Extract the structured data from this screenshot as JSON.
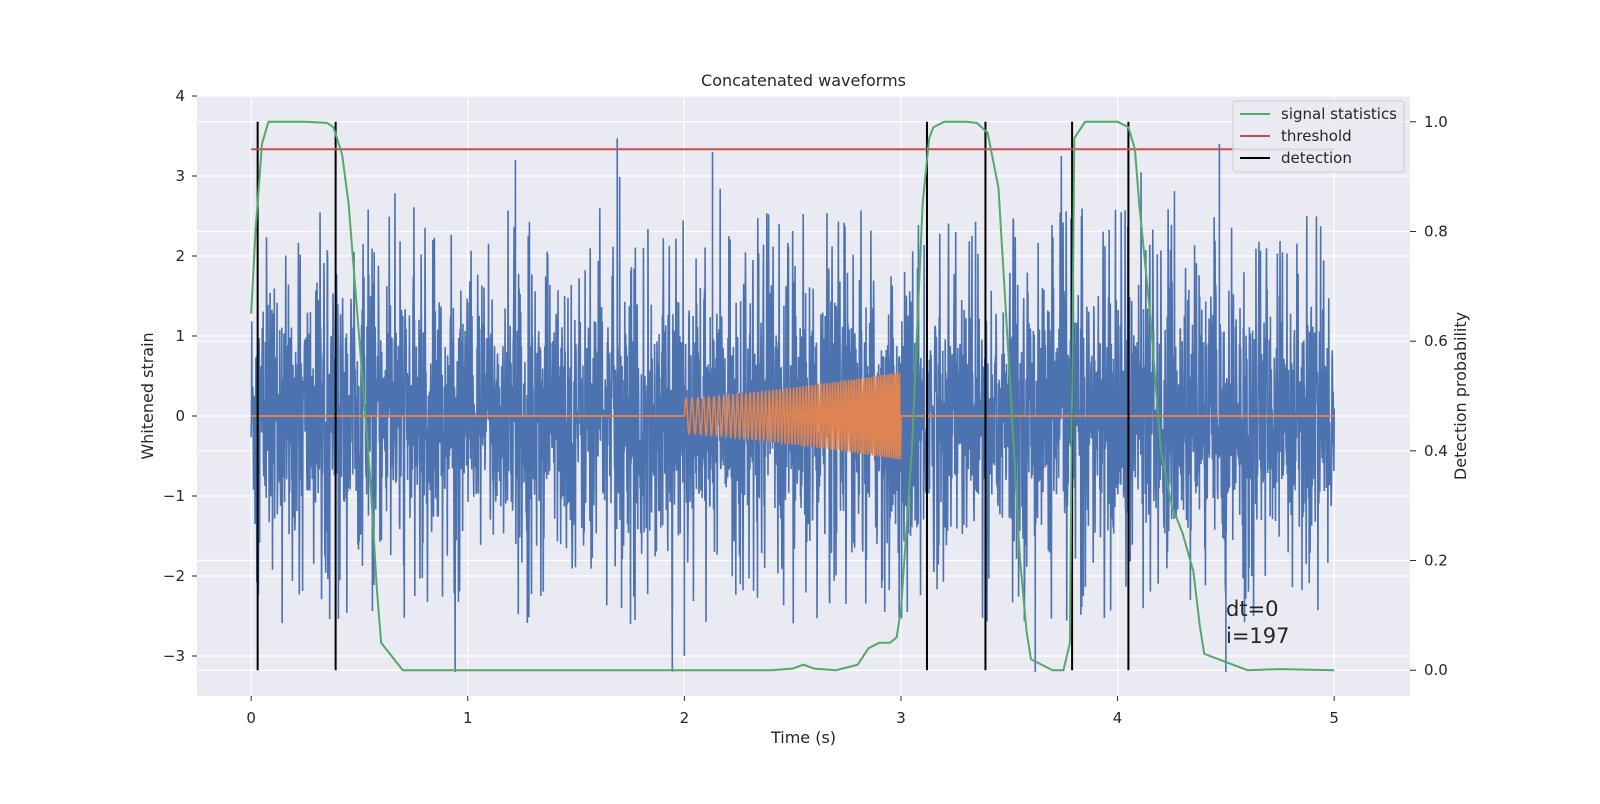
{
  "chart_data": {
    "type": "line",
    "title": "Concatenated waveforms",
    "xlabel": "Time (s)",
    "ylabel": "Whitened strain",
    "y2label": "Detection probability",
    "xlim": [
      -0.25,
      5.35
    ],
    "ylim": [
      -3.5,
      4.0
    ],
    "y2lim": [
      -0.047,
      1.047
    ],
    "xticks": [
      0,
      1,
      2,
      3,
      4,
      5
    ],
    "xtick_labels": [
      "0",
      "1",
      "2",
      "3",
      "4",
      "5"
    ],
    "yticks": [
      -3,
      -2,
      -1,
      0,
      1,
      2,
      3,
      4
    ],
    "ytick_labels": [
      "−3",
      "−2",
      "−1",
      "0",
      "1",
      "2",
      "3",
      "4"
    ],
    "y2ticks": [
      0.0,
      0.2,
      0.4,
      0.6,
      0.8,
      1.0
    ],
    "y2tick_labels": [
      "0.0",
      "0.2",
      "0.4",
      "0.6",
      "0.8",
      "1.0"
    ],
    "grid": true,
    "background": "#eaeaf2",
    "legend_position": "top-right",
    "series": [
      {
        "name": "",
        "role": "whitened strain noise",
        "color": "#4c72b0",
        "x_range": [
          0,
          5
        ],
        "typical_peak": 2.2,
        "min_value": -3.2,
        "max_value": 3.5
      },
      {
        "name": "",
        "role": "injected waveform",
        "color": "#dd8452",
        "x": [
          0,
          2,
          2,
          2.5,
          3,
          3,
          5
        ],
        "y": [
          0,
          0,
          0.25,
          0.35,
          0.55,
          0,
          0
        ],
        "chirp_start": 2.0,
        "chirp_end": 3.0
      },
      {
        "name": "signal statistics",
        "axis": "right",
        "color": "#55a868",
        "x": [
          0.0,
          0.02,
          0.05,
          0.08,
          0.1,
          0.15,
          0.25,
          0.35,
          0.38,
          0.42,
          0.45,
          0.5,
          0.55,
          0.58,
          0.6,
          0.7,
          1.0,
          1.5,
          2.0,
          2.4,
          2.5,
          2.55,
          2.6,
          2.7,
          2.8,
          2.85,
          2.9,
          2.95,
          2.98,
          3.0,
          3.05,
          3.1,
          3.13,
          3.15,
          3.2,
          3.3,
          3.35,
          3.4,
          3.45,
          3.5,
          3.55,
          3.58,
          3.6,
          3.7,
          3.75,
          3.78,
          3.8,
          3.85,
          4.0,
          4.05,
          4.08,
          4.1,
          4.15,
          4.2,
          4.25,
          4.3,
          4.35,
          4.38,
          4.4,
          4.6,
          4.75,
          5.0
        ],
        "y": [
          0.65,
          0.8,
          0.96,
          1.0,
          1.0,
          1.0,
          1.0,
          0.998,
          0.99,
          0.94,
          0.85,
          0.6,
          0.35,
          0.15,
          0.05,
          0.0,
          0.0,
          0.0,
          0.0,
          0.0,
          0.003,
          0.01,
          0.003,
          0.0,
          0.01,
          0.04,
          0.05,
          0.05,
          0.06,
          0.11,
          0.4,
          0.85,
          0.97,
          0.99,
          1.0,
          1.0,
          0.998,
          0.98,
          0.88,
          0.55,
          0.2,
          0.07,
          0.02,
          0.0,
          0.0,
          0.05,
          0.97,
          1.0,
          1.0,
          0.99,
          0.95,
          0.85,
          0.65,
          0.4,
          0.3,
          0.25,
          0.18,
          0.08,
          0.03,
          0.0,
          0.002,
          0.0
        ]
      },
      {
        "name": "threshold",
        "axis": "right",
        "color": "#c44e52",
        "x": [
          0,
          5
        ],
        "y": [
          0.95,
          0.95
        ]
      },
      {
        "name": "detection",
        "axis": "right",
        "color": "#000000",
        "vlines_x": [
          0.03,
          0.39,
          3.12,
          3.39,
          3.79,
          4.05
        ],
        "ymin": 0.0,
        "ymax": 1.0
      }
    ],
    "annotation": {
      "line1": "dt=0",
      "line2": "i=197"
    }
  }
}
